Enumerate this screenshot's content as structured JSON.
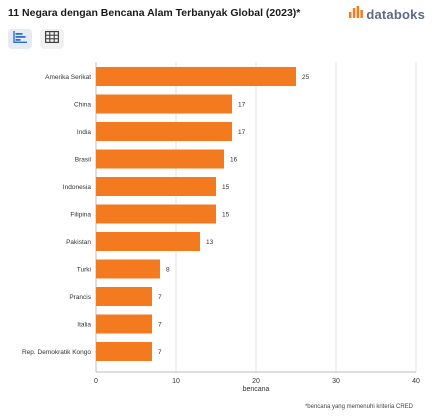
{
  "title": "11 Negara dengan Bencana Alam Terbanyak Global (2023)*",
  "brand": {
    "name": "databoks",
    "icon": "databoks-logo-icon",
    "color": "#5a6c86",
    "accent": "#f47a20"
  },
  "toolbar": {
    "chart_view_icon": "bar-chart-icon",
    "table_view_icon": "table-grid-icon"
  },
  "footnote": "*bencana yang memenuhi kriteria CRED",
  "chart_data": {
    "type": "bar",
    "orientation": "horizontal",
    "categories": [
      "Amerika Serikat",
      "China",
      "India",
      "Brasil",
      "Indonesia",
      "Filipina",
      "Pakistan",
      "Turki",
      "Prancis",
      "Italia",
      "Rep. Demokratik Kongo"
    ],
    "values": [
      25,
      17,
      17,
      16,
      15,
      15,
      13,
      8,
      7,
      7,
      7
    ],
    "data_labels": [
      "25",
      "17",
      "17",
      "16",
      "15",
      "15",
      "13",
      "8",
      "7",
      "7",
      "7"
    ],
    "xlabel": "bencana",
    "ylabel": "",
    "xlim": [
      0,
      40
    ],
    "xticks": [
      "0",
      "10",
      "20",
      "30",
      "40"
    ],
    "grid": true,
    "bar_color": "#f47a20"
  }
}
